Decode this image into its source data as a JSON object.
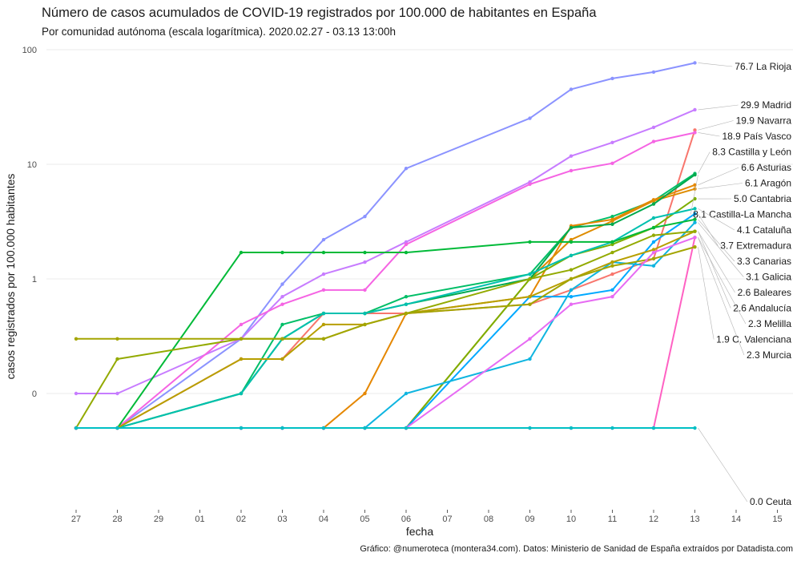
{
  "chart_data": {
    "type": "line",
    "title": "Número de casos acumulados de COVID-19 registrados por 100.000 de habitantes en España",
    "subtitle": "Por comunidad autónoma (escala logarítmica). 2020.02.27 - 03.13 13:00h",
    "xlabel": "fecha",
    "ylabel": "casos registrados por 100.000 habitantes",
    "caption": "Gráfico: @numeroteca (montera34.com). Datos: Ministerio de Sanidad de España extraídos por Datadista.com",
    "y_scale": "log",
    "ylim": [
      0.01,
      100
    ],
    "y_ticks": [
      {
        "value": 0.1,
        "label": "0"
      },
      {
        "value": 1,
        "label": "1"
      },
      {
        "value": 10,
        "label": "10"
      },
      {
        "value": 100,
        "label": "100"
      }
    ],
    "x_ticks": [
      "27",
      "28",
      "29",
      "01",
      "02",
      "03",
      "04",
      "05",
      "06",
      "07",
      "08",
      "09",
      "10",
      "11",
      "12",
      "13",
      "14",
      "15"
    ],
    "x": [
      "27",
      "28",
      "02",
      "03",
      "04",
      "05",
      "06",
      "09",
      "10",
      "11",
      "12",
      "13"
    ],
    "grid": true,
    "legend": "direct labels at right",
    "series": [
      {
        "name": "La Rioja",
        "label": "76.7 La Rioja",
        "color": "#8b93ff",
        "values": [
          0.05,
          0.05,
          0.3,
          0.9,
          2.2,
          3.5,
          9.2,
          25.2,
          45.1,
          56.1,
          63.8,
          76.7
        ]
      },
      {
        "name": "Madrid",
        "label": "29.9 Madrid",
        "color": "#c77cff",
        "values": [
          0.1,
          0.1,
          0.3,
          0.7,
          1.1,
          1.4,
          2.1,
          7.0,
          11.8,
          15.5,
          21.0,
          29.9
        ]
      },
      {
        "name": "Navarra",
        "label": "19.9 Navarra",
        "color": "#f8766d",
        "values": [
          0.05,
          0.05,
          0.2,
          0.2,
          0.5,
          0.5,
          0.5,
          0.6,
          0.8,
          1.1,
          1.5,
          19.9
        ]
      },
      {
        "name": "País Vasco",
        "label": "18.9 País Vasco",
        "color": "#f564e3",
        "values": [
          0.05,
          0.05,
          0.4,
          0.6,
          0.8,
          0.8,
          2.0,
          6.7,
          8.8,
          10.2,
          15.8,
          18.9
        ]
      },
      {
        "name": "Castilla y León",
        "label": "8.3 Castilla y León",
        "color": "#00be67",
        "values": [
          0.05,
          0.05,
          0.1,
          0.4,
          0.5,
          0.5,
          0.7,
          1.1,
          2.8,
          3.5,
          4.8,
          8.3
        ]
      },
      {
        "name": "Asturias",
        "label": "6.6 Asturias",
        "color": "#e58700",
        "values": [
          0.05,
          0.05,
          0.05,
          0.05,
          0.05,
          0.1,
          0.5,
          0.7,
          2.9,
          3.3,
          4.9,
          6.6
        ]
      },
      {
        "name": "Aragón",
        "label": "6.1 Aragón",
        "color": "#de8c00",
        "values": [
          0.05,
          0.05,
          0.05,
          0.05,
          0.05,
          0.05,
          0.05,
          1.0,
          2.2,
          3.2,
          4.8,
          6.1
        ]
      },
      {
        "name": "Cantabria",
        "label": "5.0 Cantabria",
        "color": "#7cae00",
        "values": [
          0.05,
          0.05,
          0.05,
          0.05,
          0.05,
          0.05,
          0.05,
          1.0,
          1.6,
          2.0,
          2.8,
          5.0
        ]
      },
      {
        "name": "Castilla-La Mancha",
        "label": "8.1 Castilla-La Mancha",
        "color": "#00a94d",
        "values": [
          0.05,
          0.05,
          0.1,
          0.3,
          0.5,
          0.5,
          0.6,
          1.0,
          2.8,
          3.0,
          4.5,
          8.1
        ]
      },
      {
        "name": "Cataluña",
        "label": "4.1 Cataluña",
        "color": "#00c0af",
        "values": [
          0.05,
          0.05,
          0.1,
          0.3,
          0.5,
          0.5,
          0.6,
          1.1,
          1.6,
          2.1,
          3.4,
          4.1
        ]
      },
      {
        "name": "Extremadura",
        "label": "3.7 Extremadura",
        "color": "#00a9ff",
        "values": [
          0.05,
          0.05,
          0.05,
          0.05,
          0.05,
          0.05,
          0.05,
          0.7,
          0.7,
          0.8,
          2.1,
          3.7
        ]
      },
      {
        "name": "Canarias",
        "label": "3.3 Canarias",
        "color": "#00ba38",
        "values": [
          0.05,
          0.05,
          1.7,
          1.7,
          1.7,
          1.7,
          1.7,
          2.1,
          2.1,
          2.1,
          2.8,
          3.3
        ]
      },
      {
        "name": "Galicia",
        "label": "3.1 Galicia",
        "color": "#0fb5e0",
        "values": [
          0.05,
          0.05,
          0.05,
          0.05,
          0.05,
          0.05,
          0.1,
          0.2,
          0.8,
          1.4,
          1.3,
          3.1
        ]
      },
      {
        "name": "Baleares",
        "label": "2.6 Baleares",
        "color": "#b79f00",
        "values": [
          0.05,
          0.05,
          0.2,
          0.2,
          0.4,
          0.4,
          0.5,
          0.7,
          1.0,
          1.4,
          1.8,
          2.6
        ]
      },
      {
        "name": "Andalucía",
        "label": "2.6 Andalucía",
        "color": "#93aa00",
        "values": [
          0.05,
          0.2,
          0.3,
          0.3,
          0.3,
          0.4,
          0.5,
          1.0,
          1.2,
          1.7,
          2.4,
          2.6
        ]
      },
      {
        "name": "Melilla",
        "label": "2.3 Melilla",
        "color": "#ff61c3",
        "values": [
          0.05,
          0.05,
          0.05,
          0.05,
          0.05,
          0.05,
          0.05,
          0.05,
          0.05,
          0.05,
          0.05,
          2.3
        ]
      },
      {
        "name": "C. Valenciana",
        "label": "1.9 C. Valenciana",
        "color": "#a3a500",
        "values": [
          0.3,
          0.3,
          0.3,
          0.3,
          0.3,
          0.4,
          0.5,
          0.6,
          1.0,
          1.3,
          1.5,
          1.9
        ]
      },
      {
        "name": "Murcia",
        "label": "2.3 Murcia",
        "color": "#e76bf3",
        "values": [
          0.05,
          0.05,
          0.05,
          0.05,
          0.05,
          0.05,
          0.05,
          0.3,
          0.6,
          0.7,
          1.7,
          2.3
        ]
      },
      {
        "name": "Ceuta",
        "label": "0.0 Ceuta",
        "color": "#00bfc4",
        "values": [
          0.05,
          0.05,
          0.05,
          0.05,
          0.05,
          0.05,
          0.05,
          0.05,
          0.05,
          0.05,
          0.05,
          0.05
        ]
      }
    ]
  }
}
